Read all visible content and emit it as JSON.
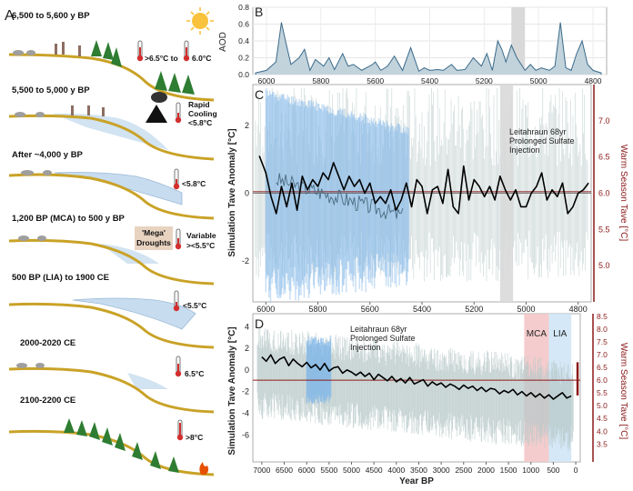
{
  "panel_a": {
    "letter": "A",
    "stages": [
      {
        "title": "6,500 to 5,600 y BP",
        "temp1": ">6.5°C to",
        "temp2": "6.0°C"
      },
      {
        "title": "5,500 to 5,000 y BP",
        "note_line1": "Rapid",
        "note_line2": "Cooling",
        "temp": "<5.8°C"
      },
      {
        "title": "After ~4,000 y BP",
        "temp": "<5.8°C"
      },
      {
        "title": "1,200 BP (MCA) to 500 y BP",
        "badge_line1": "'Mega'",
        "badge_line2": "Droughts",
        "note_line1": "Variable",
        "temp": "><5.5°C"
      },
      {
        "title": "500 BP (LIA) to 1900 CE",
        "temp": "<5.5°C"
      },
      {
        "title": "2000-2020 CE",
        "temp": "6.5°C"
      },
      {
        "title": "2100-2200 CE",
        "temp": ">8°C"
      }
    ]
  },
  "chart_data": [
    {
      "panel": "B",
      "type": "line",
      "title": "",
      "ylabel": "AOD",
      "xlabel": "",
      "xlim": [
        6050,
        4750
      ],
      "ylim": [
        0,
        0.8
      ],
      "yticks": [
        "0.8",
        "0.6",
        "0.4",
        "0.2",
        "0.0"
      ],
      "xticks": [
        "6000",
        "5800",
        "5600",
        "5400",
        "5200",
        "5000",
        "4800"
      ],
      "shaded_band": [
        5100,
        5050
      ],
      "series": [
        {
          "name": "AOD",
          "x": [
            6040,
            6000,
            5965,
            5945,
            5930,
            5910,
            5880,
            5860,
            5840,
            5820,
            5790,
            5770,
            5750,
            5720,
            5700,
            5680,
            5650,
            5610,
            5600,
            5580,
            5555,
            5530,
            5500,
            5470,
            5440,
            5420,
            5400,
            5370,
            5350,
            5320,
            5300,
            5270,
            5240,
            5210,
            5190,
            5170,
            5150,
            5135,
            5120,
            5100,
            5080,
            5050,
            5030,
            5010,
            4990,
            4960,
            4940,
            4920,
            4900,
            4880,
            4860,
            4840,
            4820,
            4800,
            4780,
            4770
          ],
          "values": [
            0.02,
            0.05,
            0.15,
            0.62,
            0.4,
            0.12,
            0.2,
            0.3,
            0.05,
            0.18,
            0.1,
            0.2,
            0.06,
            0.25,
            0.1,
            0.12,
            0.05,
            0.12,
            0.15,
            0.05,
            0.1,
            0.22,
            0.05,
            0.32,
            0.04,
            0.08,
            0.05,
            0.06,
            0.05,
            0.12,
            0.05,
            0.06,
            0.2,
            0.1,
            0.25,
            0.05,
            0.4,
            0.3,
            0.15,
            0.35,
            0.2,
            0.05,
            0.12,
            0.05,
            0.08,
            0.05,
            0.1,
            0.62,
            0.08,
            0.05,
            0.25,
            0.4,
            0.12,
            0.05,
            0.03,
            0.02
          ]
        }
      ]
    },
    {
      "panel": "C",
      "type": "line",
      "title": "",
      "ylabel": "Simulation Tave Anomaly [°C]",
      "y2label": "Warm Season Tave [°C]",
      "xlabel": "",
      "xlim": [
        6050,
        4750
      ],
      "ylim": [
        -3.2,
        3.2
      ],
      "y2lim": [
        4.5,
        7.5
      ],
      "yticks": [
        "2",
        "0",
        "-2"
      ],
      "y2ticks": [
        "7.0",
        "6.5",
        "6.0",
        "5.5",
        "5.0"
      ],
      "xticks": [
        "6000",
        "5800",
        "5600",
        "5400",
        "5200",
        "5000",
        "4800"
      ],
      "annotation_line1": "Leitahraun 68yr",
      "annotation_line2": "Prolonged Sulfate",
      "annotation_line3": "Injection",
      "shaded_band": [
        5100,
        5050
      ],
      "blue_ensemble_range": [
        6000,
        5450
      ],
      "series": [
        {
          "name": "Smoothed Tave anomaly",
          "x": [
            6025,
            6000,
            5980,
            5960,
            5940,
            5920,
            5900,
            5880,
            5860,
            5840,
            5820,
            5800,
            5780,
            5760,
            5740,
            5720,
            5700,
            5680,
            5660,
            5640,
            5620,
            5600,
            5580,
            5560,
            5540,
            5520,
            5500,
            5480,
            5460,
            5440,
            5420,
            5400,
            5380,
            5360,
            5340,
            5320,
            5300,
            5280,
            5260,
            5240,
            5220,
            5200,
            5180,
            5160,
            5140,
            5120,
            5100,
            5080,
            5060,
            5040,
            5020,
            5000,
            4980,
            4960,
            4940,
            4920,
            4900,
            4880,
            4860,
            4840,
            4820,
            4800,
            4780,
            4760
          ],
          "values": [
            1.1,
            0.6,
            -0.1,
            -0.6,
            0.2,
            -0.4,
            0.3,
            -0.5,
            0.5,
            0.1,
            0.4,
            0.2,
            0.6,
            0.4,
            0.9,
            0.5,
            0.1,
            0.5,
            0.2,
            0.4,
            0.0,
            0.3,
            -0.3,
            -0.1,
            -0.3,
            0.1,
            -0.5,
            -0.2,
            0.3,
            -0.4,
            0.4,
            0.2,
            -0.6,
            0.1,
            0.2,
            -0.3,
            0.7,
            -0.4,
            -0.6,
            0.8,
            -0.2,
            0.4,
            0.2,
            -0.1,
            0.2,
            -0.2,
            0.5,
            0.1,
            -0.2,
            0.1,
            -0.4,
            -0.4,
            0.0,
            0.2,
            0.6,
            -0.2,
            0.1,
            -0.1,
            0.3,
            -0.6,
            -0.4,
            0.0,
            0.1,
            0.3
          ]
        },
        {
          "name": "Mean warm season Tave",
          "x": [
            6050,
            4750
          ],
          "values": [
            6.02,
            6.02
          ]
        }
      ]
    },
    {
      "panel": "D",
      "type": "line",
      "title": "",
      "ylabel": "Simulation Tave Anomaly [°C]",
      "y2label": "Warm Season Tave [°C]",
      "xlabel": "Year BP",
      "xlim": [
        7200,
        -100
      ],
      "ylim": [
        -8.5,
        5.2
      ],
      "y2lim": [
        2.8,
        8.6
      ],
      "yticks": [
        "4",
        "2",
        "0",
        "-2",
        "-4",
        "-6"
      ],
      "y2ticks": [
        "8.5",
        "8.0",
        "7.5",
        "7.0",
        "6.5",
        "6.0",
        "5.5",
        "5.0",
        "4.5",
        "4.0",
        "3.5"
      ],
      "xticks": [
        "7000",
        "6500",
        "6000",
        "5500",
        "5000",
        "4500",
        "4000",
        "3500",
        "3000",
        "2500",
        "2000",
        "1500",
        "1000",
        "500",
        "0"
      ],
      "annotation_line1": "Leitahraun 68yr",
      "annotation_line2": "Prolonged Sulfate",
      "annotation_line3": "Injection",
      "shaded_bands": [
        {
          "label": "MCA",
          "range": [
            1150,
            600
          ],
          "color": "#f4c6c8"
        },
        {
          "label": "LIA",
          "range": [
            600,
            100
          ],
          "color": "#cfe6f6"
        }
      ],
      "series": [
        {
          "name": "Smoothed Tave anomaly",
          "x": [
            7000,
            6900,
            6800,
            6700,
            6600,
            6500,
            6400,
            6300,
            6200,
            6100,
            6000,
            5900,
            5800,
            5700,
            5600,
            5500,
            5400,
            5300,
            5200,
            5100,
            5000,
            4900,
            4800,
            4700,
            4600,
            4500,
            4400,
            4300,
            4200,
            4100,
            4000,
            3900,
            3800,
            3700,
            3600,
            3500,
            3400,
            3300,
            3200,
            3100,
            3000,
            2900,
            2800,
            2700,
            2600,
            2500,
            2400,
            2300,
            2200,
            2100,
            2000,
            1900,
            1800,
            1700,
            1600,
            1500,
            1400,
            1300,
            1200,
            1100,
            1000,
            900,
            800,
            700,
            600,
            500,
            400,
            300,
            200,
            100
          ],
          "values": [
            1.2,
            0.8,
            1.4,
            0.6,
            1.0,
            1.2,
            0.4,
            1.0,
            0.6,
            0.3,
            0.7,
            0.2,
            0.5,
            0.0,
            0.6,
            -0.1,
            0.2,
            0.3,
            -0.3,
            0.0,
            -0.2,
            -0.5,
            -0.2,
            -0.6,
            -0.3,
            -0.9,
            -0.4,
            -0.7,
            -1.0,
            -0.6,
            -1.1,
            -0.8,
            -1.2,
            -0.7,
            -1.3,
            -1.1,
            -0.9,
            -1.5,
            -1.1,
            -1.4,
            -1.2,
            -1.6,
            -1.3,
            -1.5,
            -1.8,
            -1.4,
            -1.7,
            -1.5,
            -1.9,
            -1.6,
            -2.0,
            -1.7,
            -1.8,
            -2.2,
            -1.9,
            -2.1,
            -1.8,
            -2.3,
            -2.0,
            -2.4,
            -2.1,
            -2.5,
            -2.2,
            -2.6,
            -2.3,
            -2.7,
            -2.4,
            -2.1,
            -2.6,
            -2.4
          ]
        },
        {
          "name": "Mean warm season Tave",
          "x": [
            7200,
            -100
          ],
          "values": [
            6.0,
            6.0
          ]
        }
      ]
    }
  ],
  "colors": {
    "smoothed": "#000000",
    "ensemble": "#b9c9c9",
    "blue_band": "#7fb6e8",
    "mean_line": "#8b1a1a",
    "right_axis": "#8b1a1a",
    "aod_fill": "#c2d3dc",
    "aod_line": "#3a6a8a",
    "grey_band": "#d9d9d9",
    "ground": "#c9a227",
    "ice": "#c7dcef"
  }
}
